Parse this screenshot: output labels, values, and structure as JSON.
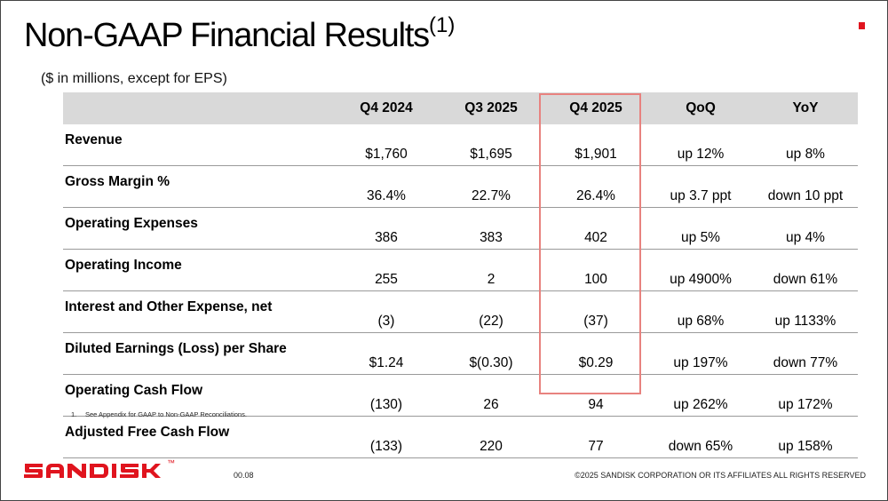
{
  "title": "Non-GAAP Financial Results",
  "title_superscript": "(1)",
  "subtitle": "($ in millions, except for EPS)",
  "table": {
    "headers": [
      "",
      "Q4 2024",
      "Q3 2025",
      "Q4 2025",
      "QoQ",
      "YoY"
    ],
    "highlighted_column": "Q4 2025",
    "rows": [
      {
        "label": "Revenue",
        "cells": [
          "$1,760",
          "$1,695",
          "$1,901",
          "up 12%",
          "up 8%"
        ]
      },
      {
        "label": "Gross Margin %",
        "cells": [
          "36.4%",
          "22.7%",
          "26.4%",
          "up 3.7 ppt",
          "down 10 ppt"
        ]
      },
      {
        "label": "Operating Expenses",
        "cells": [
          "386",
          "383",
          "402",
          "up 5%",
          "up 4%"
        ]
      },
      {
        "label": "Operating Income",
        "cells": [
          "255",
          "2",
          "100",
          "up 4900%",
          "down 61%"
        ]
      },
      {
        "label": "Interest and Other Expense, net",
        "cells": [
          "(3)",
          "(22)",
          "(37)",
          "up 68%",
          "up 1133%"
        ]
      },
      {
        "label": "Diluted Earnings (Loss) per Share",
        "cells": [
          "$1.24",
          "$(0.30)",
          "$0.29",
          "up 197%",
          "down 77%"
        ]
      },
      {
        "label": "Operating Cash Flow",
        "cells": [
          "(130)",
          "26",
          "94",
          "up 262%",
          "up 172%"
        ]
      },
      {
        "label": "Adjusted Free Cash Flow",
        "cells": [
          "(133)",
          "220",
          "77",
          "down 65%",
          "up 158%"
        ]
      }
    ]
  },
  "footnote": {
    "number": "1.",
    "text": "See Appendix for GAAP to Non-GAAP Reconciliations."
  },
  "logo": {
    "text": "SANDISK",
    "trademark": "™",
    "color": "#e0141e"
  },
  "page_number": "00.08",
  "copyright": "©2025 SANDISK CORPORATION OR ITS AFFILIATES ALL RIGHTS RESERVED",
  "colors": {
    "accent": "#e0141e",
    "highlight_border": "#e8827f",
    "header_bg": "#d9d9d9"
  }
}
